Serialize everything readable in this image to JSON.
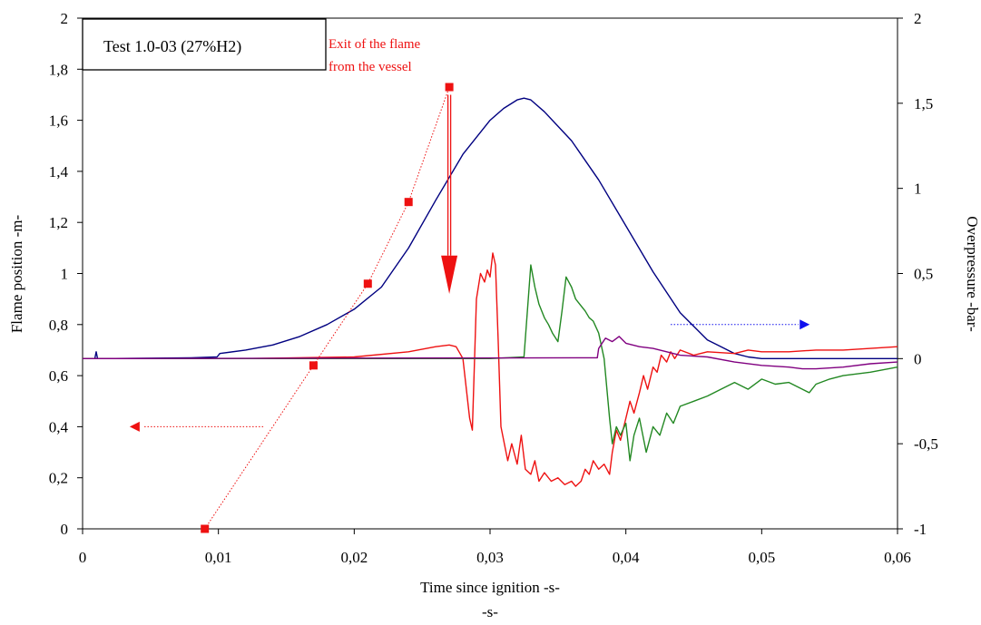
{
  "chart_data": {
    "type": "line",
    "title": "",
    "xlabel": "Time since ignition -s-",
    "xlabel_sub": "-s-",
    "ylabel_left": "Flame position -m-",
    "ylabel_right": "Overpressure -bar-",
    "xlim": [
      0,
      0.06
    ],
    "ylim_left": [
      0,
      2
    ],
    "ylim_right": [
      -1,
      2
    ],
    "x_ticks": [
      "0",
      "0,01",
      "0,02",
      "0,03",
      "0,04",
      "0,05",
      "0,06"
    ],
    "y_left_ticks": [
      "0",
      "0,2",
      "0,4",
      "0,6",
      "0,8",
      "1",
      "1,2",
      "1,4",
      "1,6",
      "1,8",
      "2"
    ],
    "y_right_ticks": [
      "-1",
      "-0,5",
      "0",
      "0,5",
      "1",
      "1,5",
      "2"
    ],
    "grid": false,
    "legend_box": "Test 1.0-03 (27%H2)",
    "annotation": [
      "Exit of the flame",
      "from the vessel"
    ],
    "colors": {
      "flame": "#ee1111",
      "annotation": "#ee1111",
      "arrow_left": "#ee1111",
      "arrow_right": "#1010ee"
    },
    "flame_position": {
      "axis": "left",
      "color": "#ee1111",
      "style": "dotted-with-square-markers",
      "x": [
        0.009,
        0.017,
        0.021,
        0.024,
        0.027
      ],
      "y": [
        0.0,
        0.64,
        0.96,
        1.28,
        1.73
      ]
    },
    "series": [
      {
        "axis": "right",
        "color": "#000080",
        "x": [
          0,
          0.0009,
          0.001,
          0.0011,
          0.002,
          0.008,
          0.0099,
          0.0101,
          0.012,
          0.014,
          0.016,
          0.018,
          0.02,
          0.022,
          0.024,
          0.026,
          0.028,
          0.03,
          0.031,
          0.032,
          0.0325,
          0.033,
          0.034,
          0.036,
          0.038,
          0.04,
          0.042,
          0.044,
          0.046,
          0.048,
          0.049,
          0.05,
          0.052,
          0.055,
          0.058,
          0.06
        ],
        "y": [
          0,
          0.0,
          0.04,
          0.0,
          0.0,
          0.005,
          0.01,
          0.03,
          0.05,
          0.08,
          0.13,
          0.2,
          0.29,
          0.42,
          0.65,
          0.93,
          1.2,
          1.4,
          1.47,
          1.52,
          1.53,
          1.52,
          1.45,
          1.28,
          1.05,
          0.78,
          0.51,
          0.27,
          0.11,
          0.03,
          0.01,
          0.0,
          0.0,
          0.0,
          0.0,
          0.0
        ]
      },
      {
        "axis": "right",
        "color": "#ee1111",
        "x": [
          0,
          0.012,
          0.02,
          0.024,
          0.026,
          0.027,
          0.0275,
          0.028,
          0.0285,
          0.0287,
          0.029,
          0.0293,
          0.0296,
          0.0298,
          0.03,
          0.0302,
          0.0304,
          0.0306,
          0.0308,
          0.031,
          0.0313,
          0.0316,
          0.032,
          0.0323,
          0.0326,
          0.033,
          0.0333,
          0.0336,
          0.034,
          0.0345,
          0.035,
          0.0355,
          0.036,
          0.0363,
          0.0367,
          0.037,
          0.0373,
          0.0376,
          0.038,
          0.0384,
          0.0388,
          0.039,
          0.0393,
          0.0396,
          0.04,
          0.0403,
          0.0406,
          0.041,
          0.0413,
          0.0416,
          0.042,
          0.0423,
          0.0426,
          0.043,
          0.0433,
          0.0436,
          0.044,
          0.045,
          0.046,
          0.048,
          0.049,
          0.05,
          0.052,
          0.054,
          0.056,
          0.058,
          0.06
        ],
        "y": [
          0,
          0.0,
          0.01,
          0.04,
          0.07,
          0.08,
          0.07,
          0.0,
          -0.35,
          -0.42,
          0.35,
          0.5,
          0.45,
          0.52,
          0.48,
          0.62,
          0.55,
          0.1,
          -0.4,
          -0.48,
          -0.6,
          -0.5,
          -0.62,
          -0.45,
          -0.65,
          -0.68,
          -0.6,
          -0.72,
          -0.67,
          -0.72,
          -0.7,
          -0.74,
          -0.72,
          -0.75,
          -0.72,
          -0.65,
          -0.68,
          -0.6,
          -0.65,
          -0.62,
          -0.68,
          -0.55,
          -0.42,
          -0.48,
          -0.35,
          -0.25,
          -0.32,
          -0.2,
          -0.1,
          -0.18,
          -0.05,
          -0.08,
          0.02,
          -0.02,
          0.04,
          0.0,
          0.05,
          0.02,
          0.04,
          0.03,
          0.05,
          0.04,
          0.04,
          0.05,
          0.05,
          0.06,
          0.07
        ]
      },
      {
        "axis": "right",
        "color": "#228822",
        "x": [
          0,
          0.03,
          0.0325,
          0.033,
          0.0333,
          0.0336,
          0.034,
          0.0343,
          0.0346,
          0.035,
          0.0353,
          0.0356,
          0.036,
          0.0363,
          0.0366,
          0.037,
          0.0373,
          0.0376,
          0.038,
          0.0384,
          0.0388,
          0.039,
          0.0393,
          0.0396,
          0.04,
          0.0403,
          0.0406,
          0.041,
          0.0415,
          0.042,
          0.0425,
          0.043,
          0.0435,
          0.044,
          0.045,
          0.046,
          0.047,
          0.048,
          0.049,
          0.05,
          0.051,
          0.052,
          0.053,
          0.0535,
          0.054,
          0.055,
          0.056,
          0.058,
          0.06
        ],
        "y": [
          0,
          0.0,
          0.01,
          0.55,
          0.42,
          0.32,
          0.24,
          0.2,
          0.15,
          0.1,
          0.28,
          0.48,
          0.42,
          0.35,
          0.32,
          0.28,
          0.24,
          0.22,
          0.15,
          0.0,
          -0.35,
          -0.5,
          -0.4,
          -0.45,
          -0.38,
          -0.6,
          -0.45,
          -0.35,
          -0.55,
          -0.4,
          -0.45,
          -0.32,
          -0.38,
          -0.28,
          -0.25,
          -0.22,
          -0.18,
          -0.14,
          -0.18,
          -0.12,
          -0.15,
          -0.14,
          -0.18,
          -0.2,
          -0.15,
          -0.12,
          -0.1,
          -0.08,
          -0.05
        ]
      },
      {
        "axis": "right",
        "color": "#800080",
        "x": [
          0,
          0.0379,
          0.038,
          0.0385,
          0.039,
          0.0395,
          0.04,
          0.041,
          0.042,
          0.043,
          0.044,
          0.046,
          0.048,
          0.05,
          0.052,
          0.053,
          0.054,
          0.056,
          0.058,
          0.06
        ],
        "y": [
          0,
          0.005,
          0.06,
          0.12,
          0.1,
          0.13,
          0.09,
          0.07,
          0.06,
          0.04,
          0.02,
          0.01,
          -0.02,
          -0.04,
          -0.05,
          -0.06,
          -0.06,
          -0.05,
          -0.03,
          -0.02
        ]
      }
    ]
  }
}
